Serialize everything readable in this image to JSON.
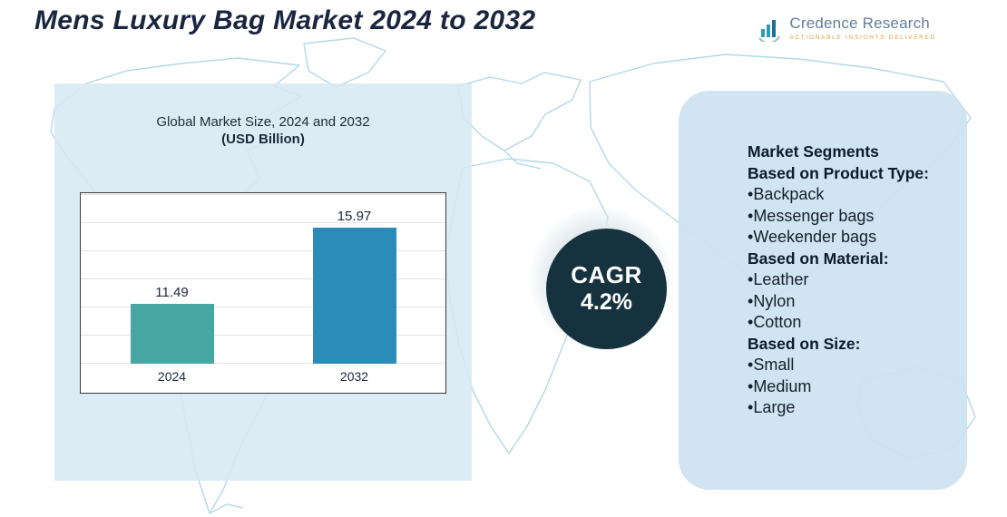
{
  "page": {
    "title": "Mens Luxury Bag Market 2024 to 2032"
  },
  "logo": {
    "name": "Credence Research",
    "tagline": "Actionable Insights Delivered"
  },
  "cagr": {
    "label": "CAGR",
    "value": "4.2%"
  },
  "chart_data": {
    "type": "bar",
    "title": "Global Market Size, 2024 and 2032",
    "subtitle": "(USD Billion)",
    "categories": [
      "2024",
      "2032"
    ],
    "values": [
      11.49,
      15.97
    ],
    "xlabel": "",
    "ylabel": "",
    "ylim": [
      8,
      18
    ],
    "grid": true,
    "legend": false,
    "bar_colors": [
      "#47a6a1",
      "#2b8cb8"
    ]
  },
  "segments_panel": {
    "bullet": "•",
    "title": "Market Segments",
    "groups": [
      {
        "heading": "Based on Product Type:",
        "items": [
          "Backpack",
          "Messenger bags",
          "Weekender bags"
        ]
      },
      {
        "heading": "Based on Material:",
        "items": [
          "Leather",
          "Nylon",
          "Cotton"
        ]
      },
      {
        "heading": "Based on Size:",
        "items": [
          "Small",
          "Medium",
          "Large"
        ]
      }
    ]
  },
  "colors": {
    "accent_teal": "#47a6a1",
    "accent_blue": "#2b8cb8",
    "cagr_circle": "#16323e",
    "panel_blue": "#d7e9f2",
    "title_navy": "#1a2540"
  }
}
